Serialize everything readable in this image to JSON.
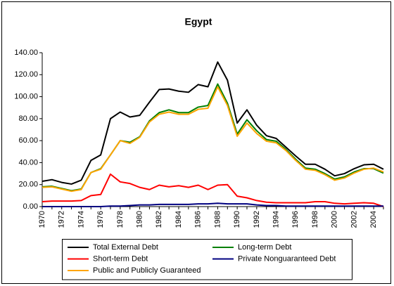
{
  "chart_data": {
    "type": "line",
    "title": "Egypt",
    "categories": [
      "1970",
      null,
      "1972",
      null,
      "1974",
      null,
      "1976",
      null,
      "1978",
      null,
      "1980",
      null,
      "1982",
      null,
      "1984",
      null,
      "1986",
      null,
      "1988",
      null,
      "1990",
      null,
      "1992",
      null,
      "1994",
      null,
      "1996",
      null,
      "1998",
      null,
      "2000",
      null,
      "2002",
      null,
      "2004",
      null
    ],
    "series": [
      {
        "name": "Total External Debt",
        "color": "#000000",
        "values": [
          23,
          24.5,
          22,
          20.5,
          24,
          42,
          47,
          80,
          86,
          81.5,
          83,
          95,
          106.5,
          107,
          105,
          104,
          111,
          109,
          131.5,
          115,
          76,
          88,
          74,
          64.5,
          62,
          54,
          46,
          38.5,
          38.5,
          34,
          28,
          30,
          34.5,
          38,
          38.5,
          34
        ]
      },
      {
        "name": "Long-term Debt",
        "color": "#008000",
        "values": [
          18,
          18.5,
          16.5,
          14.5,
          16,
          31,
          34.5,
          47,
          60,
          58.5,
          63.5,
          78,
          85.5,
          88,
          85.5,
          85.5,
          90.5,
          92,
          111.5,
          94,
          66,
          79,
          69,
          61,
          59.5,
          52,
          43,
          35,
          34,
          30,
          25,
          27,
          31.5,
          34.5,
          34.5,
          30.5
        ]
      },
      {
        "name": "Short-term Debt",
        "color": "#ff0000",
        "values": [
          4.5,
          5,
          5,
          5,
          5.5,
          10,
          11,
          29.5,
          22.5,
          21,
          17.5,
          15.5,
          19.5,
          18,
          19,
          17.5,
          19.5,
          15.5,
          19.5,
          20,
          9.5,
          8,
          5.5,
          4,
          3.5,
          3.5,
          3.5,
          3.5,
          4.5,
          4.5,
          3,
          2.5,
          3,
          3.5,
          3,
          0
        ]
      },
      {
        "name": "Private Nonguaranteed Debt",
        "color": "#000080",
        "values": [
          0,
          0,
          0,
          0,
          0,
          0,
          0,
          0.5,
          0.5,
          1,
          1.5,
          1.5,
          2,
          2,
          2,
          2,
          2.5,
          2.5,
          3,
          2.5,
          2.5,
          2.5,
          1.5,
          1,
          1,
          0.5,
          0.5,
          0.5,
          0.5,
          0.5,
          0.5,
          0.5,
          0.5,
          0.5,
          0.5,
          0.5
        ]
      },
      {
        "name": "Public and Publicly Guaranteed",
        "color": "#ffa500",
        "values": [
          17.5,
          18,
          16,
          14,
          15.5,
          31,
          34,
          47,
          60,
          57.5,
          63,
          77,
          84,
          86,
          84,
          84,
          88.5,
          89.5,
          109,
          92,
          64,
          76,
          66.5,
          59.5,
          58,
          51,
          42,
          34,
          33,
          29,
          24,
          26,
          30.5,
          34,
          35,
          31.5
        ]
      }
    ],
    "ylim": [
      0,
      140
    ],
    "yticks": [
      {
        "value": 0,
        "label": "0.00"
      },
      {
        "value": 20,
        "label": "20.00"
      },
      {
        "value": 40,
        "label": "40.00"
      },
      {
        "value": 60,
        "label": "60.00"
      },
      {
        "value": 80,
        "label": "80.00"
      },
      {
        "value": 100,
        "label": "100.00"
      },
      {
        "value": 120,
        "label": "120.00"
      },
      {
        "value": 140,
        "label": "140.00"
      }
    ],
    "grid": false,
    "legend": "bottom"
  }
}
